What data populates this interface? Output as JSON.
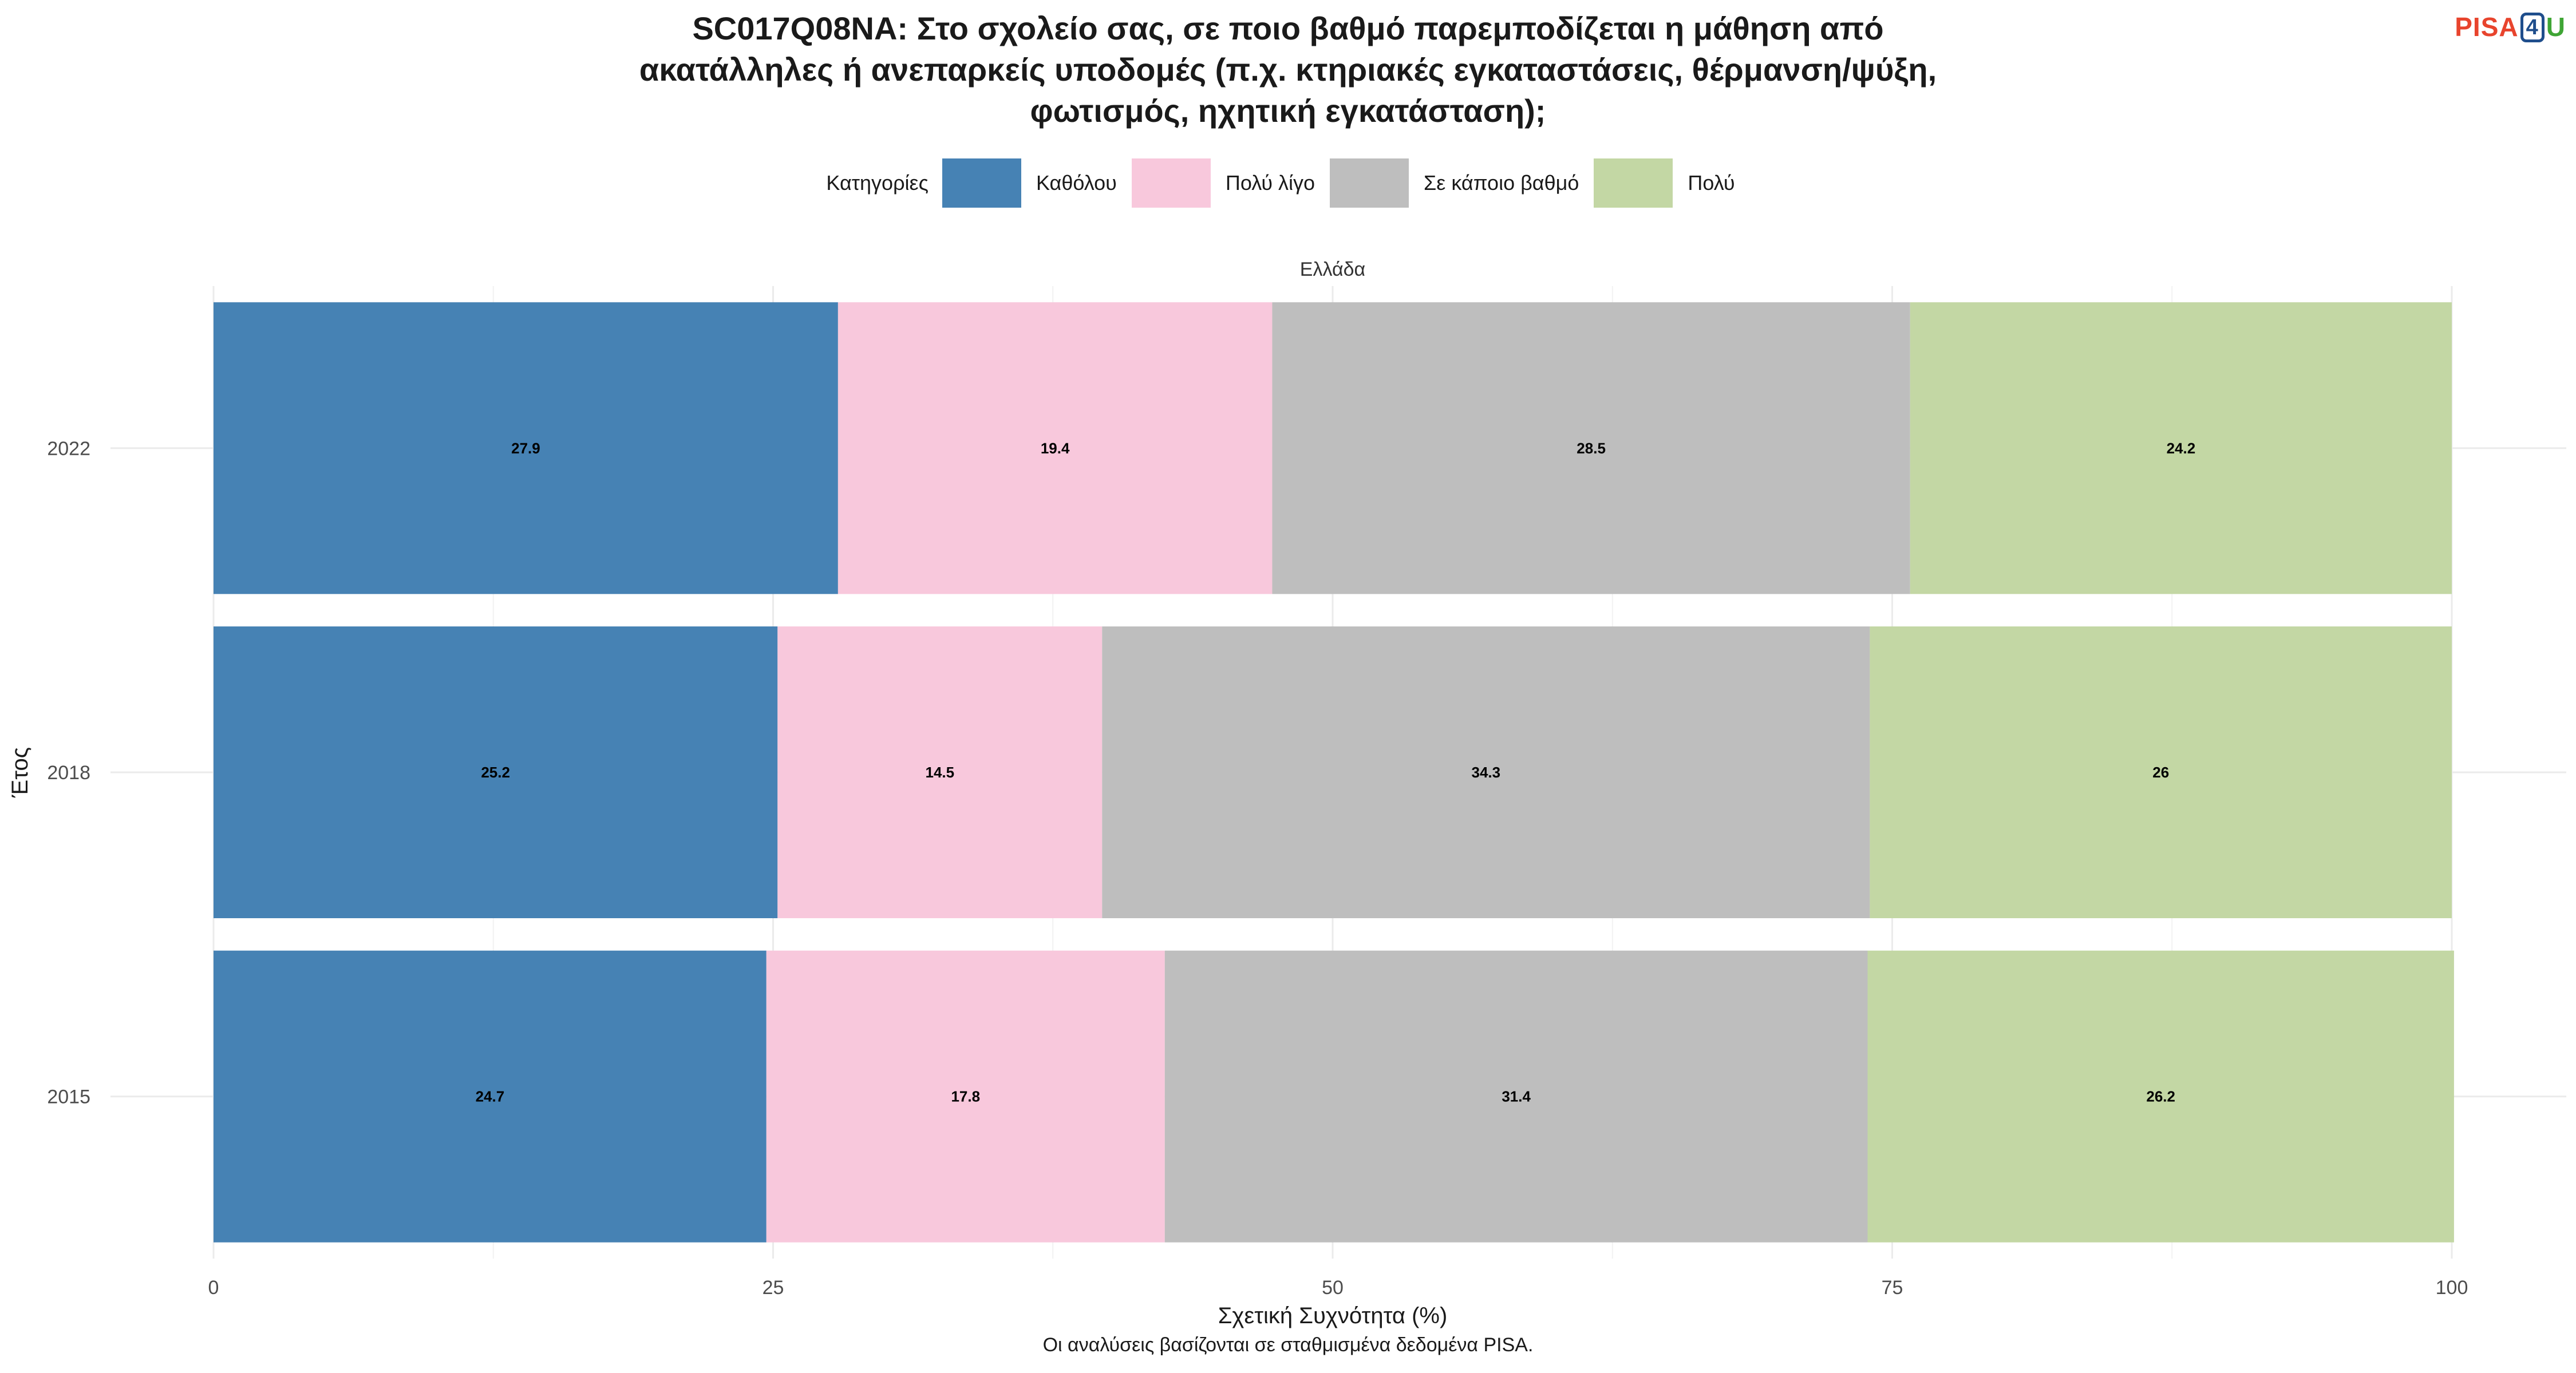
{
  "header": {
    "title_lines": [
      "SC017Q08NA: Στο σχολείο σας, σε ποιο βαθμό παρεμποδίζεται η μάθηση από",
      "ακατάλληλες ή ανεπαρκείς υποδομές (π.χ. κτηριακές εγκαταστάσεις, θέρμανση/ψύξη,",
      "φωτισμός, ηχητική εγκατάσταση);"
    ],
    "logo": {
      "pisa": "PISA",
      "four": "4",
      "u": "U"
    }
  },
  "legend": {
    "title": "Κατηγορίες",
    "placement": "top"
  },
  "footer": {
    "caption": "Οι αναλύσεις βασίζονται σε σταθμισμένα δεδομένα PISA."
  },
  "chart_data": {
    "type": "bar",
    "orientation": "horizontal",
    "stacked": true,
    "facet_label": "Ελλάδα",
    "categories": [
      "2022",
      "2018",
      "2015"
    ],
    "series": [
      {
        "name": "Καθόλου",
        "color": "#4682b4",
        "values": [
          27.9,
          25.2,
          24.7
        ]
      },
      {
        "name": "Πολύ λίγο",
        "color": "#f8c8dc",
        "values": [
          19.4,
          14.5,
          17.8
        ]
      },
      {
        "name": "Σε κάποιο βαθμό",
        "color": "#bebebe",
        "values": [
          28.5,
          34.3,
          31.4
        ]
      },
      {
        "name": "Πολύ",
        "color": "#c3d7a4",
        "values": [
          24.2,
          26,
          26.2
        ]
      }
    ],
    "data_labels": [
      [
        "27.9",
        "19.4",
        "28.5",
        "24.2"
      ],
      [
        "25.2",
        "14.5",
        "34.3",
        "26"
      ],
      [
        "24.7",
        "17.8",
        "31.4",
        "26.2"
      ]
    ],
    "xlabel": "Σχετική Συχνότητα (%)",
    "ylabel": "Έτος",
    "xlim": [
      0,
      100
    ],
    "xticks": [
      0,
      25,
      50,
      75,
      100
    ],
    "grid": true
  }
}
